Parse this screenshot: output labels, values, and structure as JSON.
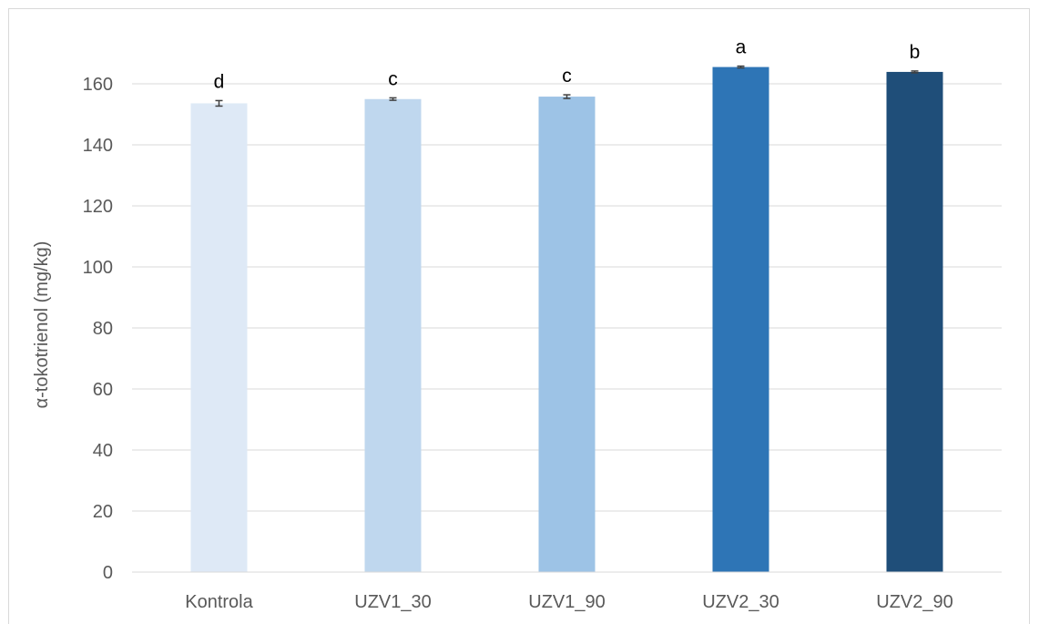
{
  "chart_data": {
    "type": "bar",
    "categories": [
      "Kontrola",
      "UZV1_30",
      "UZV1_90",
      "UZV2_30",
      "UZV2_90"
    ],
    "values": [
      153.6,
      155.0,
      155.8,
      165.5,
      163.9
    ],
    "errors": [
      0.9,
      0.4,
      0.6,
      0.3,
      0.3
    ],
    "significance_labels": [
      "d",
      "c",
      "c",
      "a",
      "b"
    ],
    "colors": [
      "#dee9f6",
      "#bfd7ee",
      "#9dc3e6",
      "#2e75b6",
      "#1f4e79"
    ],
    "title": "",
    "xlabel": "",
    "ylabel": "α-tokotrienol (mg/kg)",
    "ylim": [
      0,
      170
    ],
    "yticks": [
      0,
      20,
      40,
      60,
      80,
      100,
      120,
      140,
      160
    ],
    "grid": "horizontal",
    "legend": "none"
  }
}
